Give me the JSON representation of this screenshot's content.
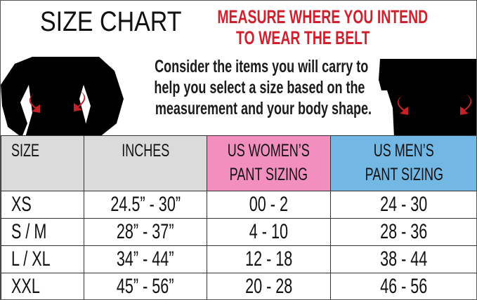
{
  "title": "SIZE CHART",
  "headline": [
    "MEASURE WHERE YOU INTEND",
    "TO WEAR THE BELT"
  ],
  "note": [
    "Consider the items you will carry to",
    "help you select a size based on the",
    "measurement and your body shape."
  ],
  "colors": {
    "headline": "#d0202e",
    "size_header": "#dcdbdc",
    "women_header": "#f28fbf",
    "men_header": "#73b8e4",
    "arrow": "#c8202a"
  },
  "icons": [
    "woman-silhouette-icon",
    "man-silhouette-icon",
    "waist-arrow-icon"
  ],
  "table": {
    "headers": [
      [
        "SIZE",
        ""
      ],
      [
        "INCHES",
        ""
      ],
      [
        "US WOMEN’S",
        "PANT SIZING"
      ],
      [
        "US MEN’S",
        "PANT SIZING"
      ]
    ],
    "rows": [
      [
        "XS",
        "24.5” -  30”",
        "00 - 2",
        "24 - 30"
      ],
      [
        "S / M",
        "28” - 37”",
        "4 - 10",
        "28 - 36"
      ],
      [
        "L / XL",
        "34” -  44”",
        "12 - 18",
        "38 - 44"
      ],
      [
        "XXL",
        "45” -  56”",
        "20 - 28",
        "46 - 56"
      ]
    ]
  }
}
